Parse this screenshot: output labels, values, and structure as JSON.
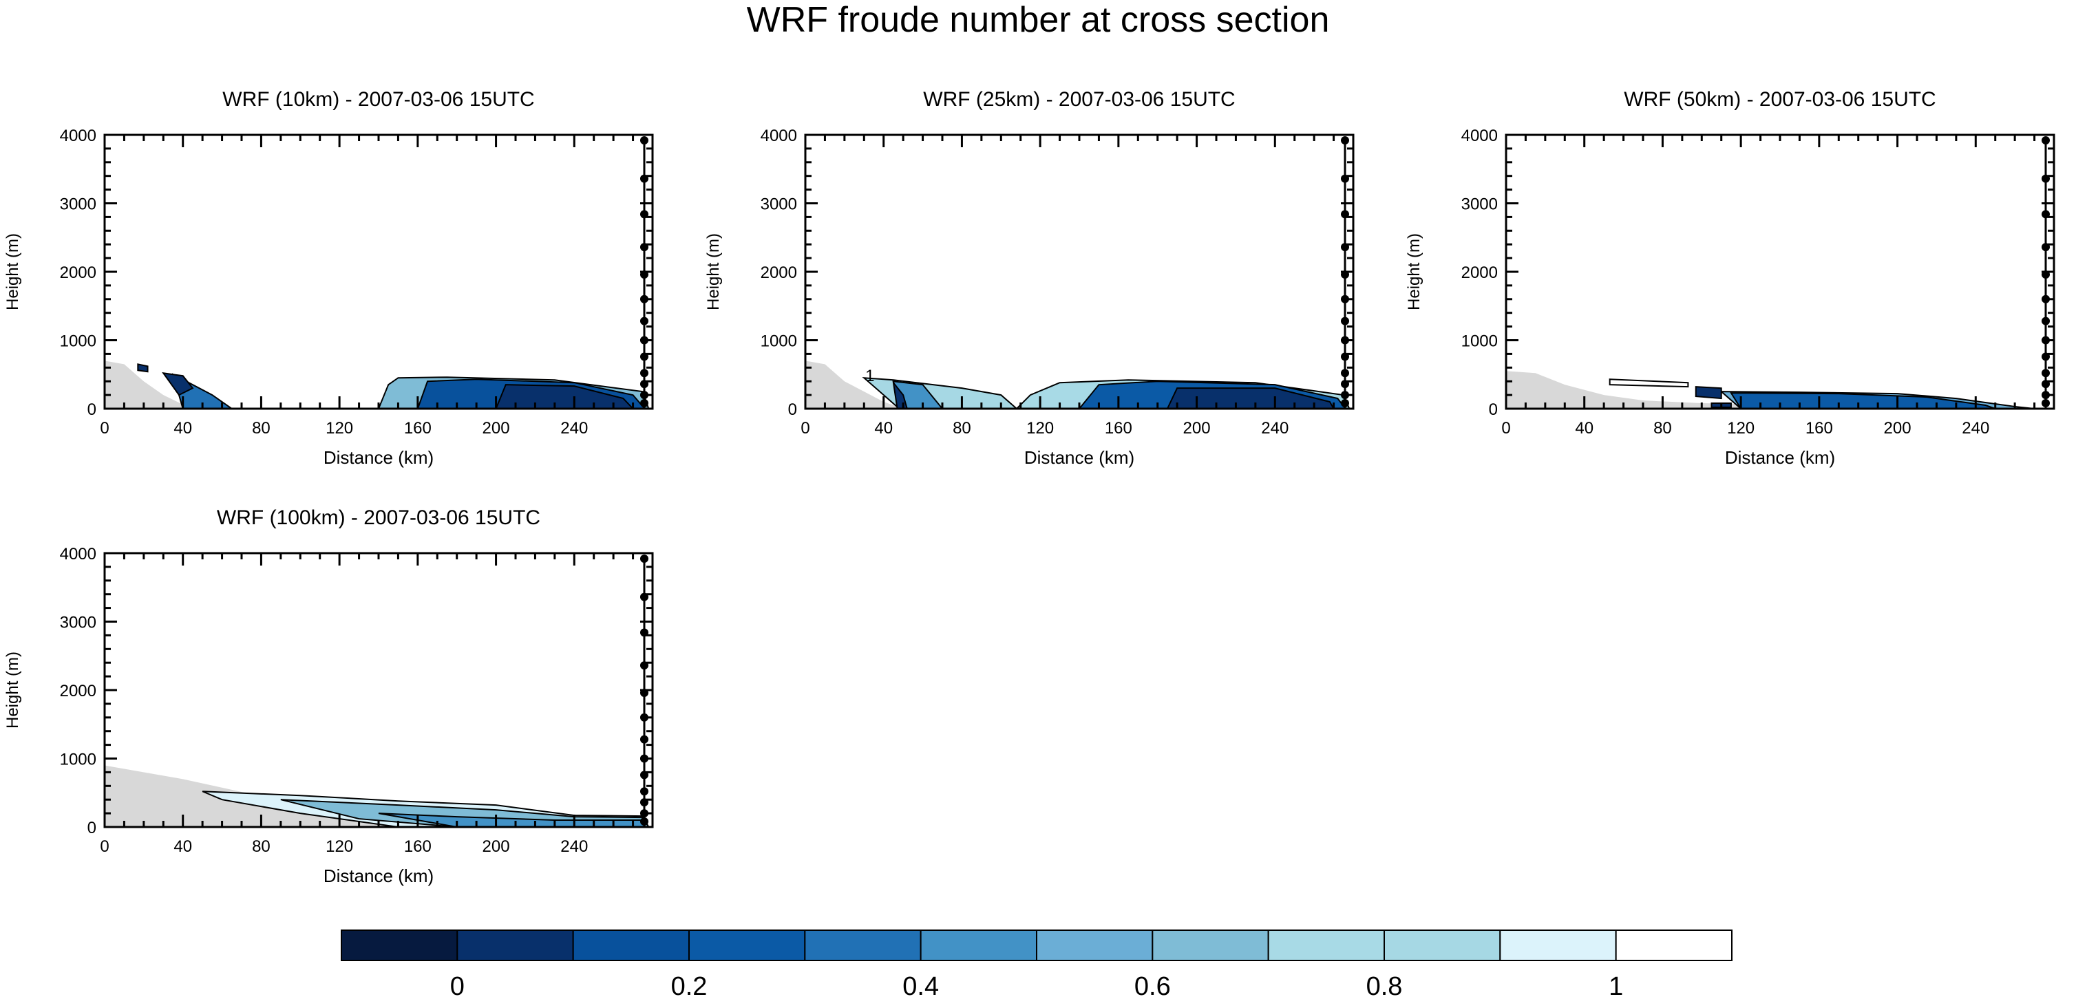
{
  "figure": {
    "title": "WRF froude number at cross section"
  },
  "colorbar": {
    "colors": [
      "#061a3f",
      "#08306b",
      "#08519c",
      "#0b5aa6",
      "#2171b5",
      "#4292c6",
      "#6baed6",
      "#7fbcd6",
      "#a8dae6",
      "#a6d8e4",
      "#dcf3fb",
      "#ffffff"
    ],
    "tick_labels": [
      "0",
      "0.2",
      "0.4",
      "0.6",
      "0.8",
      "1"
    ]
  },
  "chart_data": [
    {
      "type": "contour",
      "title": "WRF (10km) - 2007-03-06 15UTC",
      "xlabel": "Distance (km)",
      "ylabel": "Height (m)",
      "xlim": [
        0,
        280
      ],
      "ylim": [
        0,
        4000
      ],
      "xticks": [
        "0",
        "40",
        "80",
        "120",
        "160",
        "200",
        "240"
      ],
      "yticks": [
        "0",
        "1000",
        "2000",
        "3000",
        "4000"
      ],
      "terrain": [
        [
          0,
          700
        ],
        [
          10,
          650
        ],
        [
          20,
          400
        ],
        [
          30,
          200
        ],
        [
          40,
          60
        ],
        [
          50,
          0
        ],
        [
          280,
          0
        ]
      ],
      "regions": [
        {
          "level": 0.6,
          "points": [
            [
              140,
              0
            ],
            [
              145,
              350
            ],
            [
              150,
              450
            ],
            [
              175,
              460
            ],
            [
              230,
              420
            ],
            [
              275,
              250
            ],
            [
              278,
              0
            ]
          ]
        },
        {
          "level": 0.1,
          "points": [
            [
              160,
              0
            ],
            [
              165,
              400
            ],
            [
              190,
              430
            ],
            [
              240,
              380
            ],
            [
              270,
              200
            ],
            [
              276,
              0
            ]
          ]
        },
        {
          "level": 0.0,
          "points": [
            [
              200,
              0
            ],
            [
              205,
              350
            ],
            [
              240,
              330
            ],
            [
              265,
              150
            ],
            [
              270,
              0
            ]
          ]
        },
        {
          "level": 0.3,
          "points": [
            [
              35,
              500
            ],
            [
              45,
              350
            ],
            [
              55,
              200
            ],
            [
              65,
              0
            ],
            [
              40,
              0
            ]
          ]
        },
        {
          "level": 0.0,
          "points": [
            [
              30,
              520
            ],
            [
              40,
              480
            ],
            [
              45,
              300
            ],
            [
              38,
              200
            ]
          ]
        },
        {
          "level": 0.0,
          "points": [
            [
              17,
              650
            ],
            [
              22,
              620
            ],
            [
              22,
              540
            ],
            [
              17,
              560
            ]
          ]
        }
      ]
    },
    {
      "type": "contour",
      "title": "WRF (25km) - 2007-03-06 15UTC",
      "xlabel": "Distance (km)",
      "ylabel": "Height (m)",
      "xlim": [
        0,
        280
      ],
      "ylim": [
        0,
        4000
      ],
      "xticks": [
        "0",
        "40",
        "80",
        "120",
        "160",
        "200",
        "240"
      ],
      "yticks": [
        "0",
        "1000",
        "2000",
        "3000",
        "4000"
      ],
      "annotation": "1",
      "terrain": [
        [
          0,
          700
        ],
        [
          10,
          650
        ],
        [
          20,
          400
        ],
        [
          30,
          250
        ],
        [
          40,
          100
        ],
        [
          50,
          0
        ],
        [
          280,
          0
        ]
      ],
      "regions": [
        {
          "level": 0.8,
          "points": [
            [
              30,
              450
            ],
            [
              45,
              420
            ],
            [
              80,
              300
            ],
            [
              100,
              200
            ],
            [
              108,
              0
            ],
            [
              48,
              0
            ]
          ]
        },
        {
          "level": 0.4,
          "points": [
            [
              45,
              400
            ],
            [
              60,
              350
            ],
            [
              70,
              0
            ],
            [
              48,
              0
            ]
          ]
        },
        {
          "level": 0.0,
          "points": [
            [
              45,
              380
            ],
            [
              50,
              200
            ],
            [
              52,
              0
            ],
            [
              47,
              0
            ]
          ]
        },
        {
          "level": 0.7,
          "points": [
            [
              108,
              0
            ],
            [
              115,
              200
            ],
            [
              130,
              380
            ],
            [
              165,
              420
            ],
            [
              230,
              380
            ],
            [
              275,
              200
            ],
            [
              278,
              0
            ]
          ]
        },
        {
          "level": 0.2,
          "points": [
            [
              140,
              0
            ],
            [
              150,
              350
            ],
            [
              180,
              400
            ],
            [
              240,
              350
            ],
            [
              272,
              150
            ],
            [
              276,
              0
            ]
          ]
        },
        {
          "level": 0.0,
          "points": [
            [
              185,
              0
            ],
            [
              190,
              300
            ],
            [
              240,
              300
            ],
            [
              268,
              100
            ],
            [
              270,
              0
            ]
          ]
        }
      ]
    },
    {
      "type": "contour",
      "title": "WRF (50km) - 2007-03-06 15UTC",
      "xlabel": "Distance (km)",
      "ylabel": "Height (m)",
      "xlim": [
        0,
        280
      ],
      "ylim": [
        0,
        4000
      ],
      "xticks": [
        "0",
        "40",
        "80",
        "120",
        "160",
        "200",
        "240"
      ],
      "yticks": [
        "0",
        "1000",
        "2000",
        "3000",
        "4000"
      ],
      "terrain": [
        [
          0,
          550
        ],
        [
          15,
          520
        ],
        [
          30,
          350
        ],
        [
          50,
          200
        ],
        [
          70,
          120
        ],
        [
          100,
          80
        ],
        [
          280,
          0
        ]
      ],
      "regions": [
        {
          "level": 1.0,
          "points": [
            [
              53,
              430
            ],
            [
              93,
              380
            ],
            [
              93,
              320
            ],
            [
              53,
              350
            ]
          ]
        },
        {
          "level": 0.5,
          "points": [
            [
              110,
              250
            ],
            [
              150,
              240
            ],
            [
              200,
              220
            ],
            [
              230,
              150
            ],
            [
              260,
              30
            ],
            [
              270,
              0
            ],
            [
              120,
              0
            ]
          ]
        },
        {
          "level": 0.2,
          "points": [
            [
              115,
              230
            ],
            [
              170,
              220
            ],
            [
              215,
              170
            ],
            [
              245,
              50
            ],
            [
              250,
              0
            ],
            [
              120,
              0
            ]
          ]
        },
        {
          "level": 0.0,
          "points": [
            [
              97,
              320
            ],
            [
              110,
              300
            ],
            [
              110,
              150
            ],
            [
              97,
              180
            ]
          ]
        },
        {
          "level": 0.0,
          "points": [
            [
              105,
              80
            ],
            [
              115,
              80
            ],
            [
              115,
              20
            ],
            [
              105,
              20
            ]
          ]
        }
      ]
    },
    {
      "type": "contour",
      "title": "WRF (100km) - 2007-03-06 15UTC",
      "xlabel": "Distance (km)",
      "ylabel": "Height (m)",
      "xlim": [
        0,
        280
      ],
      "ylim": [
        0,
        4000
      ],
      "xticks": [
        "0",
        "40",
        "80",
        "120",
        "160",
        "200",
        "240"
      ],
      "yticks": [
        "0",
        "1000",
        "2000",
        "3000",
        "4000"
      ],
      "terrain": [
        [
          0,
          900
        ],
        [
          40,
          700
        ],
        [
          80,
          450
        ],
        [
          120,
          250
        ],
        [
          160,
          120
        ],
        [
          200,
          60
        ],
        [
          240,
          30
        ],
        [
          280,
          0
        ]
      ],
      "regions": [
        {
          "level": 0.9,
          "points": [
            [
              50,
              520
            ],
            [
              100,
              460
            ],
            [
              150,
              380
            ],
            [
              200,
              320
            ],
            [
              240,
              170
            ],
            [
              275,
              160
            ],
            [
              278,
              0
            ],
            [
              150,
              0
            ],
            [
              100,
              200
            ],
            [
              60,
              400
            ]
          ]
        },
        {
          "level": 0.6,
          "points": [
            [
              90,
              400
            ],
            [
              150,
              320
            ],
            [
              200,
              250
            ],
            [
              240,
              150
            ],
            [
              275,
              140
            ],
            [
              278,
              0
            ],
            [
              180,
              0
            ],
            [
              130,
              120
            ]
          ]
        },
        {
          "level": 0.4,
          "points": [
            [
              140,
              200
            ],
            [
              180,
              150
            ],
            [
              230,
              100
            ],
            [
              275,
              100
            ],
            [
              276,
              0
            ],
            [
              180,
              0
            ]
          ]
        }
      ]
    }
  ]
}
